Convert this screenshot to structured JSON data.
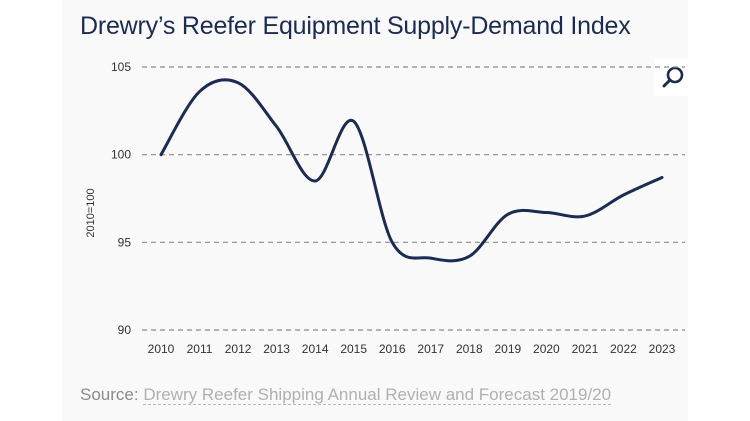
{
  "title": "Drewry’s Reefer Equipment Supply-Demand Index",
  "zoom": {
    "icon": "search-icon"
  },
  "source": {
    "prefix": "Source:",
    "link_text": "Drewry Reefer Shipping Annual Review and Forecast 2019/20"
  },
  "colors": {
    "line": "#1b2b52",
    "title": "#1b2b52",
    "grid": "#8c8c8c",
    "background": "#f9f9f9"
  },
  "chart_data": {
    "type": "line",
    "ylabel": "2010=100",
    "xlabel": "",
    "ylim": [
      90,
      105
    ],
    "yticks": [
      90,
      95,
      100,
      105
    ],
    "grid": "horizontal dashed",
    "x": [
      "2010",
      "2011",
      "2012",
      "2013",
      "2014",
      "2015",
      "2016",
      "2017",
      "2018",
      "2019",
      "2020",
      "2021",
      "2022",
      "2023"
    ],
    "values": [
      100.0,
      103.6,
      104.1,
      101.6,
      98.5,
      101.9,
      95.0,
      94.1,
      94.2,
      96.6,
      96.7,
      96.5,
      97.7,
      98.7
    ]
  }
}
